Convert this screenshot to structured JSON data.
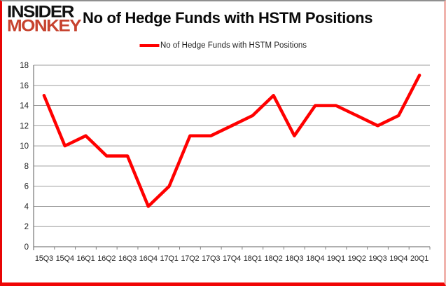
{
  "brand": {
    "line1": "INSIDER",
    "line2": "MONKEY",
    "line1_color": "#111111",
    "line2_color": "#c7432f"
  },
  "header": {
    "title": "No of Hedge Funds with HSTM Positions"
  },
  "legend": {
    "label": "No of Hedge Funds with HSTM Positions",
    "line_color": "#ff0000"
  },
  "colors": {
    "series_line": "#ff0000",
    "gridline": "#9d9d9d",
    "axis": "#808080",
    "tick_text": "#1f1f1f",
    "frame_red": "#f00505"
  },
  "chart_data": {
    "type": "line",
    "title": "No of Hedge Funds with HSTM Positions",
    "categories": [
      "15Q3",
      "15Q4",
      "16Q1",
      "16Q2",
      "16Q3",
      "16Q4",
      "17Q1",
      "17Q2",
      "17Q3",
      "17Q4",
      "18Q1",
      "18Q2",
      "18Q3",
      "18Q4",
      "19Q1",
      "19Q2",
      "19Q3",
      "19Q4",
      "20Q1"
    ],
    "series": [
      {
        "name": "No of Hedge Funds with HSTM Positions",
        "color": "#ff0000",
        "values": [
          15,
          10,
          11,
          9,
          9,
          4,
          6,
          11,
          11,
          12,
          13,
          15,
          11,
          14,
          14,
          13,
          12,
          13,
          17
        ]
      }
    ],
    "xlabel": "",
    "ylabel": "",
    "ylim": [
      0,
      18
    ],
    "ytick_step": 2,
    "grid": true,
    "legend_position": "top-center"
  }
}
